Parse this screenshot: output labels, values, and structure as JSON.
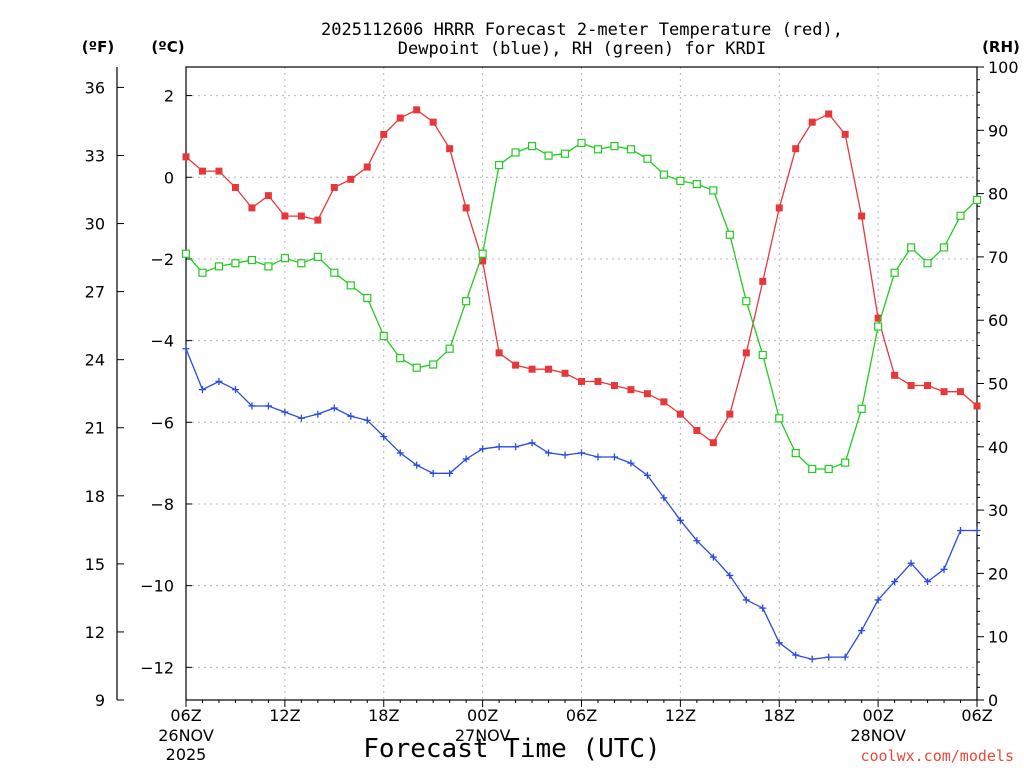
{
  "chart_data": {
    "type": "line",
    "title": [
      "2025112606 HRRR Forecast 2-meter Temperature (red),",
      "Dewpoint (blue), RH (green) for KRDI"
    ],
    "xlabel": "Forecast Time (UTC)",
    "credit": "coolwx.com/models",
    "unit_labels": {
      "left_f": "(ºF)",
      "left_c": "(ºC)",
      "right": "(RH)"
    },
    "x_tick_labels": [
      "06Z",
      "12Z",
      "18Z",
      "00Z",
      "06Z",
      "12Z",
      "18Z",
      "00Z",
      "06Z"
    ],
    "date_labels": [
      {
        "tick": 0,
        "lines": [
          "26NOV",
          "2025"
        ]
      },
      {
        "tick": 3,
        "lines": [
          "27NOV"
        ]
      },
      {
        "tick": 7,
        "lines": [
          "28NOV"
        ]
      }
    ],
    "x": [
      "26NOV 06Z",
      "07Z",
      "08Z",
      "09Z",
      "10Z",
      "11Z",
      "12Z",
      "13Z",
      "14Z",
      "15Z",
      "16Z",
      "17Z",
      "18Z",
      "19Z",
      "20Z",
      "21Z",
      "22Z",
      "23Z",
      "27NOV 00Z",
      "01Z",
      "02Z",
      "03Z",
      "04Z",
      "05Z",
      "06Z",
      "07Z",
      "08Z",
      "09Z",
      "10Z",
      "11Z",
      "12Z",
      "13Z",
      "14Z",
      "15Z",
      "16Z",
      "17Z",
      "18Z",
      "19Z",
      "20Z",
      "21Z",
      "22Z",
      "23Z",
      "28NOV 00Z",
      "01Z",
      "02Z",
      "03Z",
      "04Z",
      "05Z",
      "06Z"
    ],
    "y_left_c": {
      "ticks": [
        2,
        0,
        -2,
        -4,
        -6,
        -8,
        -10,
        -12
      ],
      "labels": [
        "2",
        "0",
        "−2",
        "−4",
        "−6",
        "−8",
        "−10",
        "−12"
      ],
      "range": [
        -12.8,
        2.7
      ]
    },
    "y_left_f": {
      "ticks": [
        36,
        33,
        30,
        27,
        24,
        21,
        18,
        15,
        12,
        9
      ],
      "range": [
        9.0,
        36.9
      ]
    },
    "y_right_rh": {
      "ticks": [
        100,
        90,
        80,
        70,
        60,
        50,
        40,
        30,
        20,
        10,
        0
      ],
      "range": [
        0,
        100
      ]
    },
    "grid": true,
    "series": [
      {
        "name": "Temperature",
        "axis": "C",
        "color": "#e8373a",
        "marker": "filled-square",
        "values": [
          0.5,
          0.15,
          0.15,
          -0.25,
          -0.75,
          -0.45,
          -0.95,
          -0.95,
          -1.05,
          -0.25,
          -0.05,
          0.25,
          1.05,
          1.45,
          1.65,
          1.35,
          0.7,
          -0.75,
          -2.05,
          -4.3,
          -4.6,
          -4.7,
          -4.7,
          -4.8,
          -5.0,
          -5.0,
          -5.1,
          -5.2,
          -5.3,
          -5.5,
          -5.8,
          -6.2,
          -6.5,
          -5.8,
          -4.3,
          -2.55,
          -0.75,
          0.7,
          1.35,
          1.55,
          1.05,
          -0.95,
          -3.45,
          -4.85,
          -5.1,
          -5.1,
          -5.25,
          -5.25,
          -5.6
        ]
      },
      {
        "name": "Dewpoint",
        "axis": "C",
        "color": "#2a4be0",
        "marker": "plus",
        "values": [
          -4.2,
          -5.2,
          -5.0,
          -5.2,
          -5.6,
          -5.6,
          -5.75,
          -5.9,
          -5.8,
          -5.65,
          -5.85,
          -5.95,
          -6.35,
          -6.75,
          -7.05,
          -7.25,
          -7.25,
          -6.9,
          -6.65,
          -6.6,
          -6.6,
          -6.5,
          -6.75,
          -6.8,
          -6.75,
          -6.85,
          -6.85,
          -7.0,
          -7.3,
          -7.85,
          -8.4,
          -8.9,
          -9.3,
          -9.75,
          -10.35,
          -10.55,
          -11.4,
          -11.7,
          -11.8,
          -11.75,
          -11.75,
          -11.1,
          -10.35,
          -9.9,
          -9.45,
          -9.9,
          -9.6,
          -8.65,
          -8.65
        ]
      },
      {
        "name": "RH",
        "axis": "RH",
        "color": "#22cc22",
        "marker": "open-square",
        "values": [
          70.5,
          67.5,
          68.5,
          69,
          69.5,
          68.5,
          69.8,
          69,
          70,
          67.5,
          65.5,
          63.5,
          57.5,
          54,
          52.5,
          53,
          55.5,
          63,
          70.5,
          84.5,
          86.5,
          87.5,
          86,
          86.3,
          88,
          87,
          87.5,
          87,
          85.5,
          83,
          82,
          81.5,
          80.5,
          73.5,
          63,
          54.5,
          44.5,
          39,
          36.5,
          36.5,
          37.5,
          46,
          59,
          67.5,
          71.5,
          69,
          71.5,
          76.5,
          79
        ]
      }
    ]
  }
}
